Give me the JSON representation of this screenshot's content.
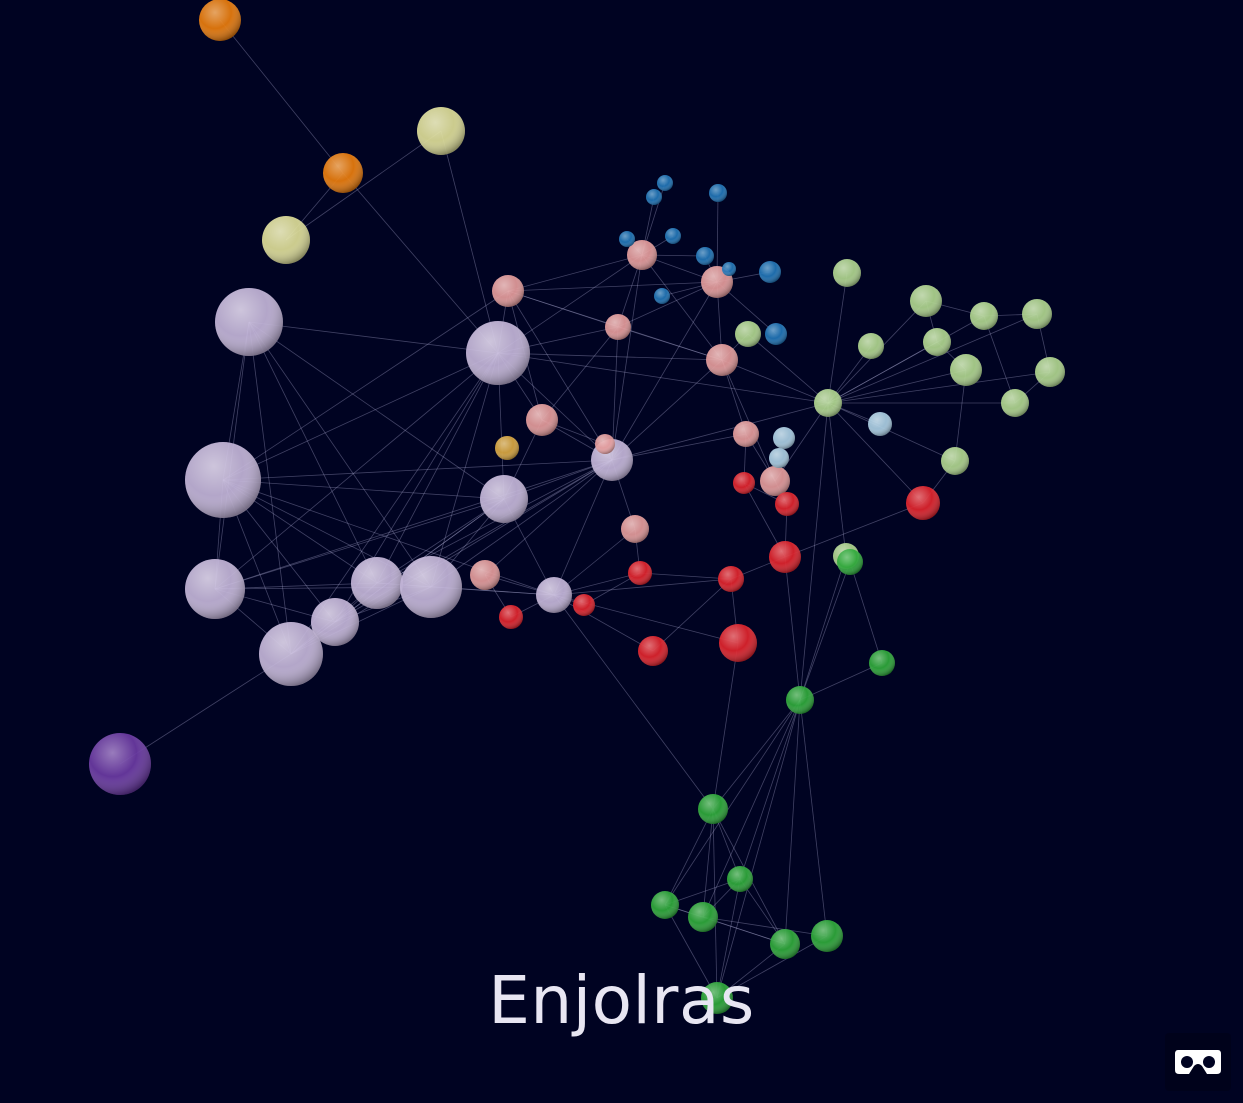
{
  "graph": {
    "hover_label": "Enjolras",
    "background": "#000322",
    "link_color": "#b8b8e0",
    "group_colors": {
      "lavender": "#c2b4d8",
      "pink": "#e39a9a",
      "red": "#e0232b",
      "green": "#2ea83a",
      "light_green": "#aed48d",
      "blue": "#1f74b6",
      "light_blue": "#a9cde3",
      "orange": "#e97c0c",
      "khaki": "#dcdc97",
      "gold": "#d8a640",
      "purple": "#6a3aa3"
    }
  },
  "controls": {
    "vr_icon": "vr-headset-icon"
  }
}
